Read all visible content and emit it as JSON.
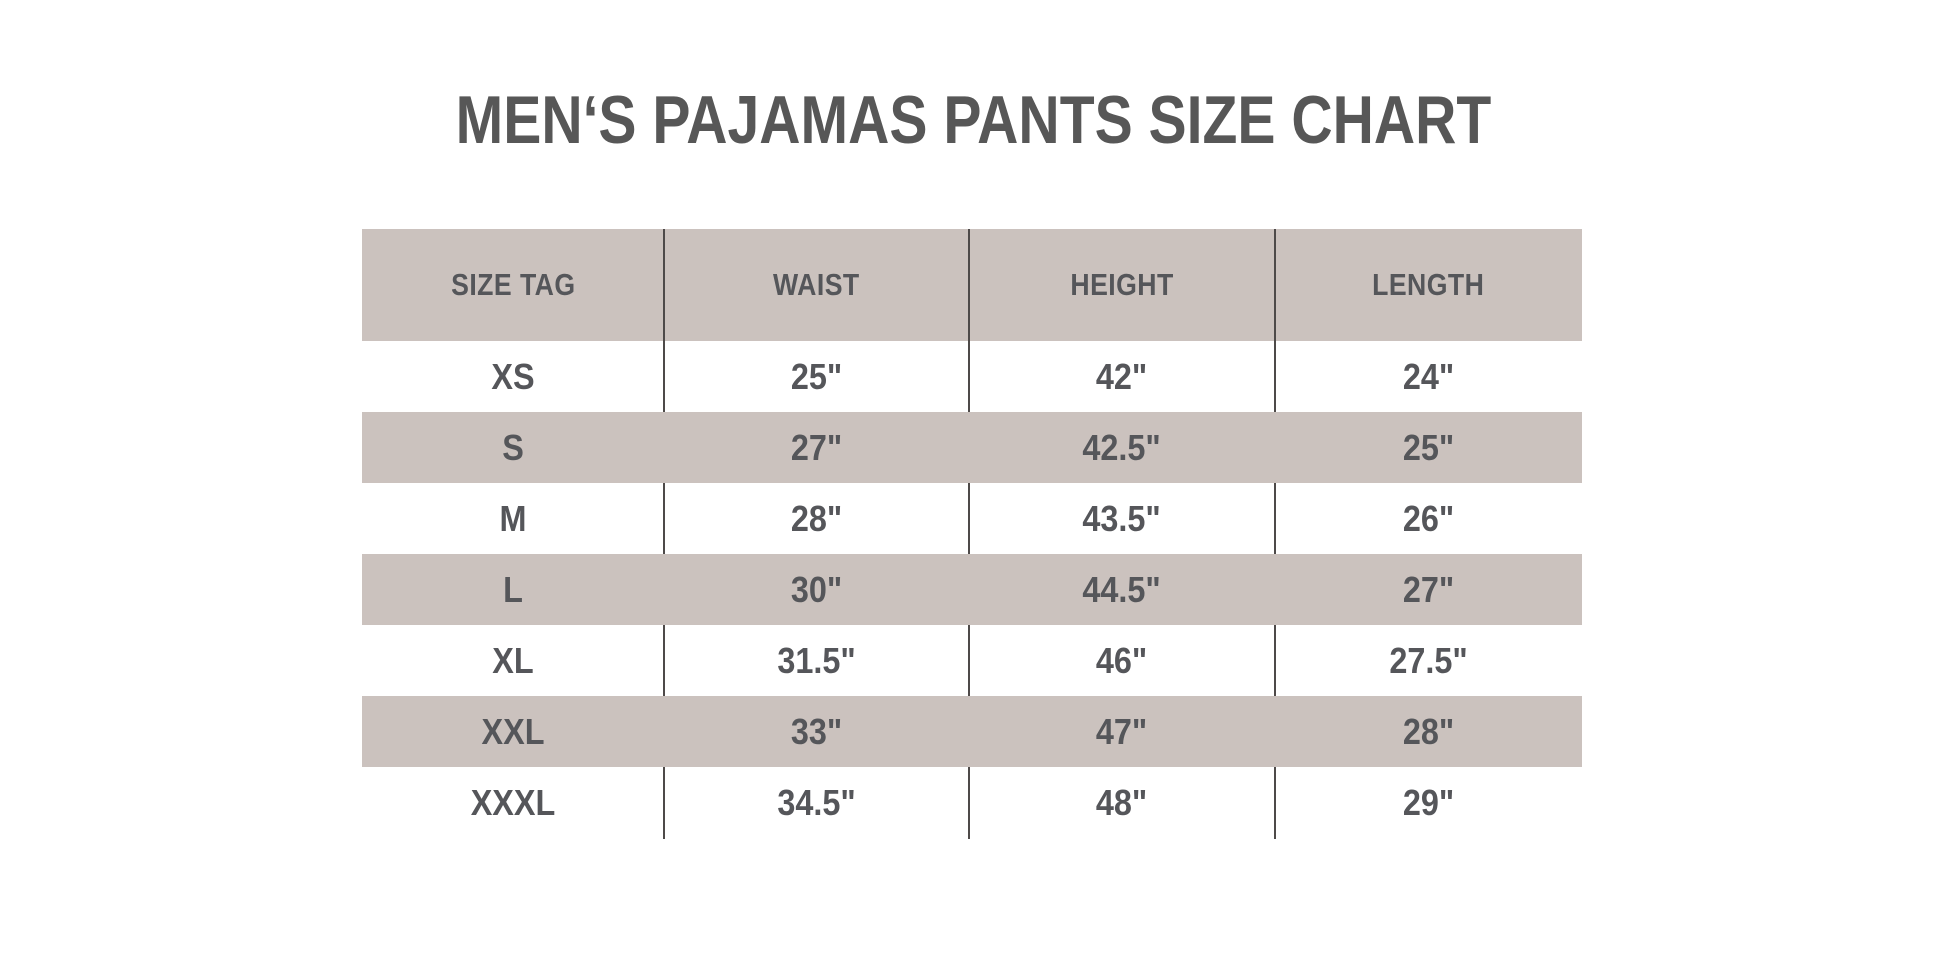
{
  "chart_data": {
    "type": "table",
    "title": "MEN‘S PAJAMAS PANTS SIZE CHART",
    "columns": [
      "SIZE TAG",
      "WAIST",
      "HEIGHT",
      "LENGTH"
    ],
    "rows": [
      [
        "XS",
        "25\"",
        "42\"",
        "24\""
      ],
      [
        "S",
        "27\"",
        "42.5\"",
        "25\""
      ],
      [
        "M",
        "28\"",
        "43.5\"",
        "26\""
      ],
      [
        "L",
        "30\"",
        "44.5\"",
        "27\""
      ],
      [
        "XL",
        "31.5\"",
        "46\"",
        "27.5\""
      ],
      [
        "XXL",
        "33\"",
        "47\"",
        "28\""
      ],
      [
        "XXXL",
        "34.5\"",
        "48\"",
        "29\""
      ]
    ],
    "layout": {
      "header_fill": "striped",
      "stripe_pattern": "header, S, L and XXL rows shaded; XS, M, XL, XXXL rows white",
      "column_dividers": 3,
      "outer_border": "none"
    }
  },
  "colors": {
    "background": "#FFFFFF",
    "row_band": "#CBC2BE",
    "text": "#55565A",
    "title": "#575757",
    "divider": "#4E4A49"
  }
}
